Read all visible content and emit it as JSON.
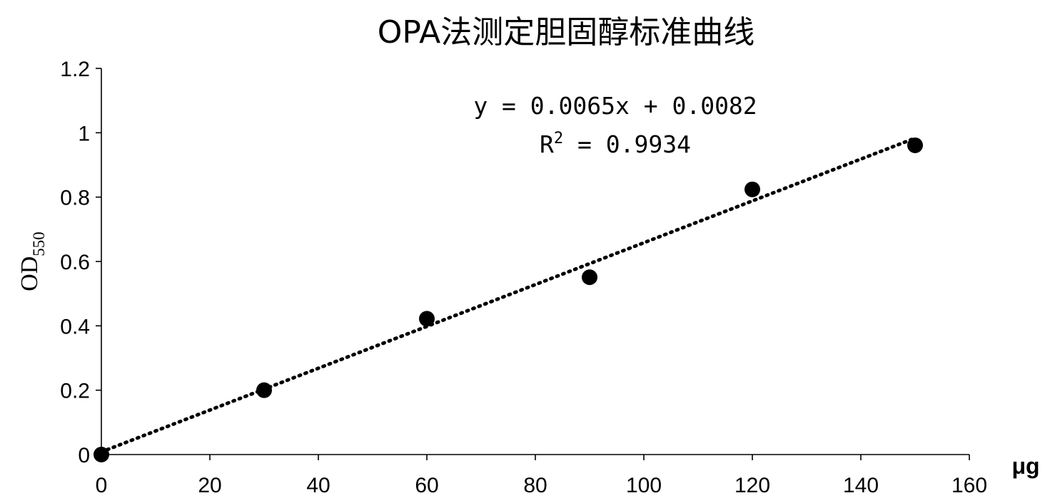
{
  "chart_data": {
    "type": "scatter",
    "title": "OPA法测定胆固醇标准曲线",
    "xlabel": "μg",
    "ylabel": "OD",
    "ylabel_subscript": "550",
    "xlim": [
      0,
      160
    ],
    "ylim": [
      0,
      1.2
    ],
    "x_ticks": [
      "0",
      "20",
      "40",
      "60",
      "80",
      "100",
      "120",
      "140",
      "160"
    ],
    "y_ticks": [
      "0",
      "0.2",
      "0.4",
      "0.6",
      "0.8",
      "1",
      "1.2"
    ],
    "grid": false,
    "legend": "none",
    "series": [
      {
        "x": [
          0,
          30,
          60,
          90,
          120,
          150
        ],
        "y": [
          0,
          0.2,
          0.422,
          0.551,
          0.824,
          0.961
        ],
        "marker_color": "#000000"
      }
    ],
    "trendline": {
      "type": "linear",
      "slope": 0.0065,
      "intercept": 0.0082,
      "x_range": [
        0,
        150
      ],
      "style": "dotted",
      "equation_text": "y = 0.0065x + 0.0082",
      "r2_prefix": "R",
      "r2_superscript": "2",
      "r2_value_text": " = 0.9934"
    }
  }
}
